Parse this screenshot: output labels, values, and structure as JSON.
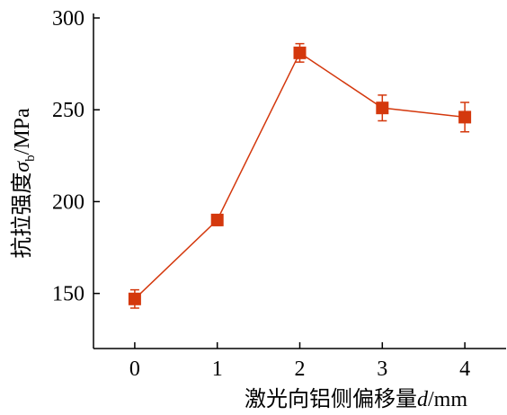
{
  "chart_data": {
    "type": "line",
    "x_label": [
      "激光向铝侧偏移量",
      "d",
      "/mm"
    ],
    "y_label": [
      "抗拉强度",
      "σ",
      "b",
      "/MPa"
    ],
    "x": [
      0,
      1,
      2,
      3,
      4
    ],
    "series": [
      {
        "color": "#d4380d",
        "values": [
          147,
          190,
          281,
          251,
          246
        ],
        "errors": [
          5,
          3,
          5,
          7,
          8
        ]
      }
    ],
    "xlim": [
      -0.5,
      4.5
    ],
    "xticks": [
      0,
      1,
      2,
      3,
      4
    ],
    "ylim": [
      120,
      300
    ],
    "yticks": [
      150,
      200,
      250,
      300
    ]
  }
}
